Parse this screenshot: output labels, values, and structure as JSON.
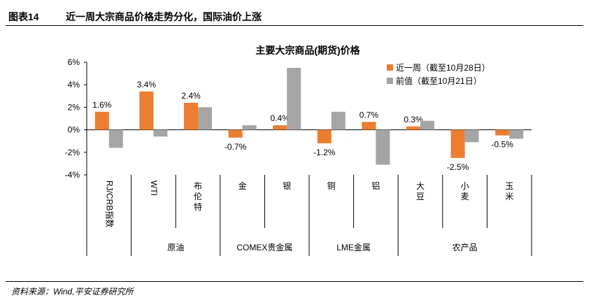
{
  "figure": {
    "number": "图表14",
    "title": "近一周大宗商品价格走势分化，国际油价上涨",
    "source": "资料来源：Wind,平安证券研究所"
  },
  "chart_data": {
    "type": "bar",
    "title": "主要大宗商品(期货)价格",
    "categories": [
      "RJ/CRB指数",
      "WTI",
      "布伦特",
      "金",
      "银",
      "铜",
      "铝",
      "大豆",
      "小麦",
      "玉米"
    ],
    "groups": [
      {
        "label": "",
        "members": [
          "RJ/CRB指数"
        ]
      },
      {
        "label": "原油",
        "members": [
          "WTI",
          "布伦特"
        ]
      },
      {
        "label": "COMEX贵金属",
        "members": [
          "金",
          "银"
        ]
      },
      {
        "label": "LME金属",
        "members": [
          "铜",
          "铝"
        ]
      },
      {
        "label": "农产品",
        "members": [
          "大豆",
          "小麦",
          "玉米"
        ]
      }
    ],
    "series": [
      {
        "name": "近一周（截至10月28日）",
        "color": "#ED7D31",
        "values": [
          1.6,
          3.4,
          2.4,
          -0.7,
          0.4,
          -1.2,
          0.7,
          0.3,
          -2.5,
          -0.5
        ],
        "labels": [
          "1.6%",
          "3.4%",
          "2.4%",
          "-0.7%",
          "0.4%",
          "-1.2%",
          "0.7%",
          "0.3%",
          "-2.5%",
          "-0.5%"
        ]
      },
      {
        "name": "前值（截至10月21日）",
        "color": "#A5A5A5",
        "values": [
          -1.6,
          -0.6,
          2.0,
          0.4,
          5.5,
          1.6,
          -3.1,
          0.8,
          -1.1,
          -0.8
        ]
      }
    ],
    "ylim": [
      -4,
      6
    ],
    "yticks": [
      -4,
      -2,
      0,
      2,
      4,
      6
    ],
    "ytick_labels": [
      "-4%",
      "-2%",
      "0%",
      "2%",
      "4%",
      "6%"
    ],
    "legend_position": "top-right",
    "grid": false
  }
}
